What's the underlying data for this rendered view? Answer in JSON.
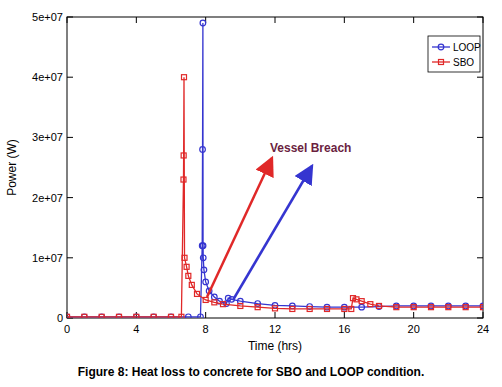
{
  "chart_data": {
    "type": "line",
    "title": "Figure 8: Heat loss to concrete for SBO and LOOP condition.",
    "x_label": "Time (hrs)",
    "y_label": "Power (W)",
    "annotations": [
      {
        "text": "Vessel Breach",
        "color": "#6b1f3f"
      }
    ],
    "xlim": [
      0,
      24
    ],
    "xticks": [
      0,
      4,
      8,
      12,
      16,
      20,
      24
    ],
    "ylim": [
      0,
      50000000
    ],
    "yticks": [
      {
        "value": 0,
        "label": "0"
      },
      {
        "value": 10000000,
        "label": "1e+07"
      },
      {
        "value": 20000000,
        "label": "2e+07"
      },
      {
        "value": 30000000,
        "label": "3e+07"
      },
      {
        "value": 40000000,
        "label": "4e+07"
      },
      {
        "value": 50000000,
        "label": "5e+07"
      }
    ],
    "grid": false,
    "legend": "upper right",
    "series": [
      {
        "name": "LOOP",
        "color": "#3535d0",
        "marker": "circle",
        "x": [
          0,
          1,
          2,
          3,
          4,
          5,
          6,
          7,
          7.7,
          7.8,
          7.82,
          7.84,
          7.85,
          7.86,
          7.9,
          8.0,
          8.2,
          8.5,
          8.8,
          9.2,
          9.3,
          9.5,
          10,
          11,
          12,
          13,
          14,
          15,
          16,
          17,
          18,
          19,
          20,
          21,
          22,
          23,
          24
        ],
        "values": [
          200000,
          200000,
          200000,
          200000,
          200000,
          200000,
          200000,
          200000,
          200000,
          12000000,
          28000000,
          49000000,
          12000000,
          10000000,
          8000000,
          6000000,
          4500000,
          3500000,
          2800000,
          2400000,
          3300000,
          3100000,
          2800000,
          2400000,
          2100000,
          2000000,
          1900000,
          1800000,
          1800000,
          1800000,
          1900000,
          2000000,
          2000000,
          2000000,
          2000000,
          2000000,
          2000000
        ]
      },
      {
        "name": "SBO",
        "color": "#e02828",
        "marker": "square",
        "x": [
          0,
          1,
          2,
          3,
          4,
          5,
          6,
          6.6,
          6.72,
          6.73,
          6.75,
          6.78,
          6.9,
          7.0,
          7.2,
          7.5,
          8,
          8.5,
          9,
          10,
          11,
          12,
          13,
          14,
          15,
          16,
          16.4,
          16.5,
          16.7,
          17,
          17.5,
          18,
          19,
          20,
          21,
          22,
          23,
          24
        ],
        "values": [
          200000,
          200000,
          200000,
          200000,
          200000,
          200000,
          200000,
          200000,
          23000000,
          27000000,
          40000000,
          10000000,
          8500000,
          7000000,
          5500000,
          4000000,
          3000000,
          2600000,
          2300000,
          2000000,
          1800000,
          1600000,
          1500000,
          1500000,
          1500000,
          1500000,
          1500000,
          3300000,
          3100000,
          2800000,
          2300000,
          2000000,
          1800000,
          1800000,
          1800000,
          1800000,
          1800000,
          1800000
        ]
      }
    ]
  }
}
